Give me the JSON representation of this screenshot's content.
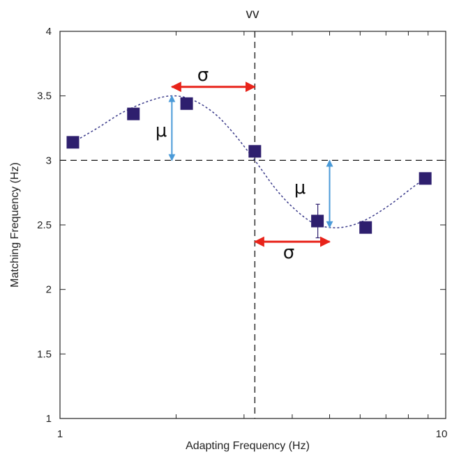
{
  "chart_data": {
    "type": "scatter",
    "title": "vv",
    "xlabel": "Adapting Frequency (Hz)",
    "ylabel": "Matching Frequency (Hz)",
    "xscale": "log",
    "xlim": [
      1,
      10
    ],
    "ylim": [
      1,
      4
    ],
    "x_ticks": [
      "1",
      "10"
    ],
    "y_ticks": [
      "1",
      "1.5",
      "2",
      "2.5",
      "3",
      "3.5",
      "4"
    ],
    "grid": false,
    "reference_lines": {
      "x": 3.2,
      "y": 3
    },
    "points": [
      {
        "x": 1.08,
        "y": 3.14
      },
      {
        "x": 1.55,
        "y": 3.36
      },
      {
        "x": 2.13,
        "y": 3.44
      },
      {
        "x": 3.2,
        "y": 3.07
      },
      {
        "x": 4.65,
        "y": 2.53,
        "err": 0.13
      },
      {
        "x": 6.2,
        "y": 2.48
      },
      {
        "x": 8.85,
        "y": 2.86
      }
    ],
    "fit_curve": [
      {
        "x": 1.08,
        "y": 3.14
      },
      {
        "x": 1.25,
        "y": 3.25
      },
      {
        "x": 1.45,
        "y": 3.37
      },
      {
        "x": 1.7,
        "y": 3.46
      },
      {
        "x": 1.95,
        "y": 3.5
      },
      {
        "x": 2.2,
        "y": 3.47
      },
      {
        "x": 2.5,
        "y": 3.37
      },
      {
        "x": 2.8,
        "y": 3.22
      },
      {
        "x": 3.2,
        "y": 3.0
      },
      {
        "x": 3.6,
        "y": 2.79
      },
      {
        "x": 4.0,
        "y": 2.64
      },
      {
        "x": 4.5,
        "y": 2.52
      },
      {
        "x": 5.0,
        "y": 2.48
      },
      {
        "x": 5.6,
        "y": 2.49
      },
      {
        "x": 6.3,
        "y": 2.55
      },
      {
        "x": 7.2,
        "y": 2.66
      },
      {
        "x": 8.2,
        "y": 2.79
      },
      {
        "x": 8.85,
        "y": 2.86
      }
    ],
    "annotations": {
      "sigma_label": "σ",
      "mu_label": "μ",
      "sigma_arrows": [
        {
          "x1": 1.95,
          "x2": 3.2,
          "y": 3.57
        },
        {
          "x1": 3.2,
          "x2": 5.0,
          "y": 2.37
        }
      ],
      "mu_arrows": [
        {
          "x": 1.95,
          "y1": 3.0,
          "y2": 3.5
        },
        {
          "x": 5.0,
          "y1": 2.48,
          "y2": 3.0
        }
      ]
    },
    "colors": {
      "marker": "#2e1f6e",
      "fit": "#3a3a8a",
      "sigma_arrow": "#e8231a",
      "mu_arrow": "#4a9ad8",
      "axis": "#222222"
    }
  }
}
